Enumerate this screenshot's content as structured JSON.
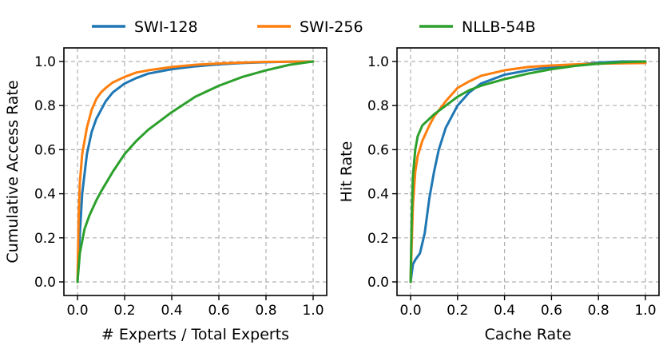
{
  "legend": [
    {
      "name": "SWI-128",
      "color": "#1f77b4"
    },
    {
      "name": "SWI-256",
      "color": "#ff7f0e"
    },
    {
      "name": "NLLB-54B",
      "color": "#2ca02c"
    }
  ],
  "chart_data": [
    {
      "type": "line",
      "xlabel": "# Experts / Total Experts",
      "ylabel": "Cumulative Access Rate",
      "xlim": [
        0,
        1
      ],
      "ylim": [
        0,
        1
      ],
      "xticks": [
        "0.0",
        "0.2",
        "0.4",
        "0.6",
        "0.8",
        "1.0"
      ],
      "yticks": [
        "0.0",
        "0.2",
        "0.4",
        "0.6",
        "0.8",
        "1.0"
      ],
      "grid": true,
      "series": [
        {
          "name": "SWI-128",
          "color": "#1f77b4",
          "x": [
            0,
            0.01,
            0.02,
            0.04,
            0.06,
            0.08,
            0.1,
            0.12,
            0.15,
            0.2,
            0.25,
            0.3,
            0.4,
            0.5,
            0.6,
            0.7,
            0.8,
            0.9,
            1.0
          ],
          "y": [
            0,
            0.22,
            0.4,
            0.58,
            0.68,
            0.74,
            0.78,
            0.82,
            0.86,
            0.9,
            0.925,
            0.945,
            0.965,
            0.978,
            0.987,
            0.993,
            0.997,
            0.999,
            1.0
          ]
        },
        {
          "name": "SWI-256",
          "color": "#ff7f0e",
          "x": [
            0,
            0.005,
            0.01,
            0.02,
            0.04,
            0.06,
            0.08,
            0.1,
            0.12,
            0.15,
            0.2,
            0.25,
            0.3,
            0.4,
            0.5,
            0.6,
            0.7,
            0.8,
            0.9,
            1.0
          ],
          "y": [
            0,
            0.3,
            0.45,
            0.58,
            0.7,
            0.78,
            0.83,
            0.86,
            0.88,
            0.905,
            0.93,
            0.95,
            0.96,
            0.975,
            0.985,
            0.991,
            0.995,
            0.998,
            0.999,
            1.0
          ]
        },
        {
          "name": "NLLB-54B",
          "color": "#2ca02c",
          "x": [
            0,
            0.01,
            0.03,
            0.05,
            0.08,
            0.1,
            0.15,
            0.2,
            0.25,
            0.3,
            0.4,
            0.5,
            0.6,
            0.7,
            0.8,
            0.9,
            1.0
          ],
          "y": [
            0,
            0.13,
            0.24,
            0.3,
            0.37,
            0.41,
            0.5,
            0.58,
            0.64,
            0.69,
            0.77,
            0.84,
            0.89,
            0.93,
            0.96,
            0.985,
            1.0
          ]
        }
      ]
    },
    {
      "type": "line",
      "xlabel": "Cache Rate",
      "ylabel": "Hit Rate",
      "xlim": [
        0,
        1
      ],
      "ylim": [
        0,
        1
      ],
      "xticks": [
        "0.0",
        "0.2",
        "0.4",
        "0.6",
        "0.8",
        "1.0"
      ],
      "yticks": [
        "0.0",
        "0.2",
        "0.4",
        "0.6",
        "0.8",
        "1.0"
      ],
      "grid": true,
      "series": [
        {
          "name": "SWI-128",
          "color": "#1f77b4",
          "x": [
            0,
            0.01,
            0.02,
            0.04,
            0.06,
            0.08,
            0.1,
            0.12,
            0.15,
            0.2,
            0.25,
            0.3,
            0.4,
            0.5,
            0.6,
            0.7,
            0.8,
            0.9,
            1.0
          ],
          "y": [
            0,
            0.08,
            0.1,
            0.13,
            0.22,
            0.38,
            0.5,
            0.6,
            0.7,
            0.8,
            0.86,
            0.9,
            0.94,
            0.96,
            0.975,
            0.985,
            0.995,
            1.0,
            1.0
          ]
        },
        {
          "name": "SWI-256",
          "color": "#ff7f0e",
          "x": [
            0,
            0.01,
            0.02,
            0.03,
            0.05,
            0.08,
            0.1,
            0.15,
            0.2,
            0.25,
            0.3,
            0.4,
            0.5,
            0.6,
            0.7,
            0.8,
            0.9,
            1.0
          ],
          "y": [
            0,
            0.35,
            0.5,
            0.57,
            0.64,
            0.71,
            0.75,
            0.82,
            0.88,
            0.91,
            0.935,
            0.96,
            0.975,
            0.982,
            0.987,
            0.99,
            0.992,
            0.993
          ]
        },
        {
          "name": "NLLB-54B",
          "color": "#2ca02c",
          "x": [
            0,
            0.005,
            0.01,
            0.02,
            0.03,
            0.05,
            0.08,
            0.1,
            0.15,
            0.2,
            0.25,
            0.3,
            0.4,
            0.5,
            0.6,
            0.7,
            0.8,
            0.9,
            1.0
          ],
          "y": [
            0,
            0.3,
            0.48,
            0.6,
            0.66,
            0.71,
            0.74,
            0.76,
            0.8,
            0.84,
            0.87,
            0.89,
            0.92,
            0.945,
            0.965,
            0.98,
            0.99,
            0.997,
            1.0
          ]
        }
      ]
    }
  ]
}
